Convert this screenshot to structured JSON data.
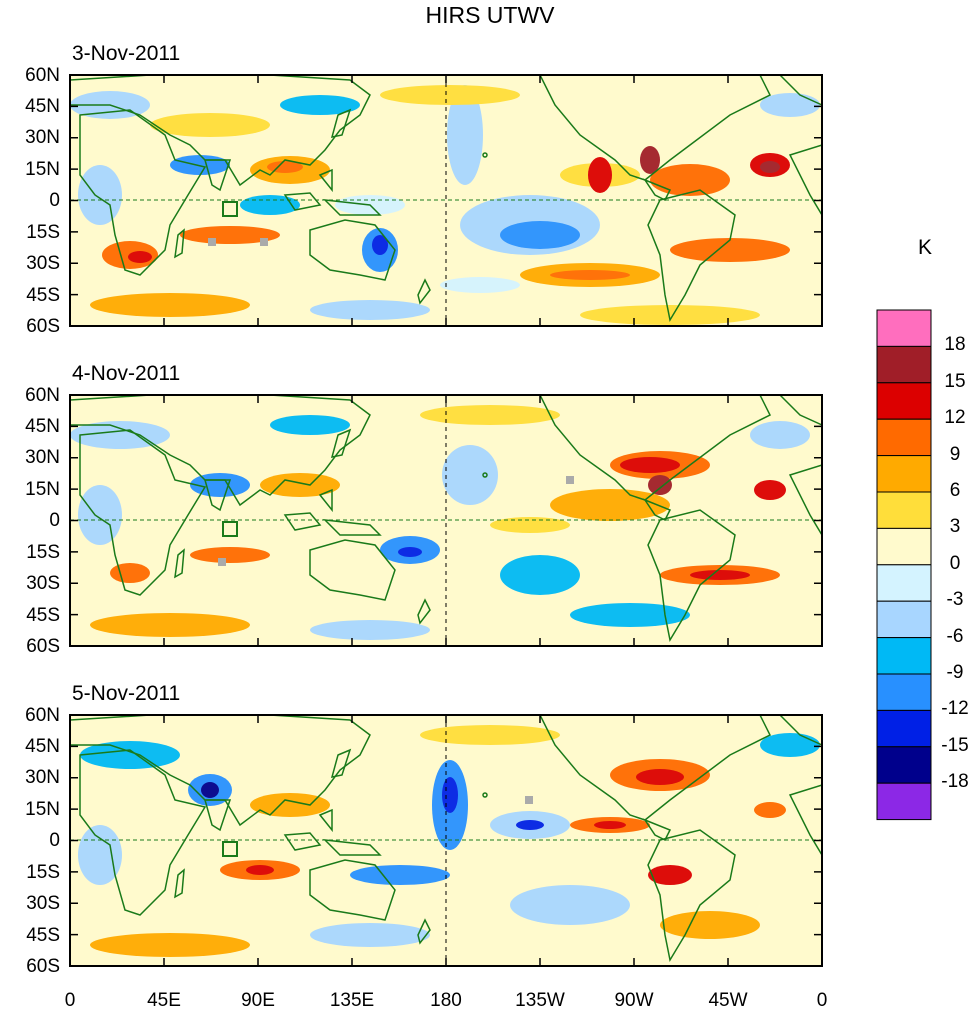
{
  "title": "HIRS UTWV",
  "panels": [
    {
      "date": "3-Nov-2011"
    },
    {
      "date": "4-Nov-2011"
    },
    {
      "date": "5-Nov-2011"
    }
  ],
  "lat_labels": [
    "60N",
    "45N",
    "30N",
    "15N",
    "0",
    "15S",
    "30S",
    "45S",
    "60S"
  ],
  "lon_labels": [
    "0",
    "45E",
    "90E",
    "135E",
    "180",
    "135W",
    "90W",
    "45W",
    "0"
  ],
  "colorbar": {
    "unit": "K",
    "labels": [
      "18",
      "15",
      "12",
      "9",
      "6",
      "3",
      "0",
      "-3",
      "-6",
      "-9",
      "-12",
      "-15",
      "-18"
    ],
    "colors": [
      "#ff6ebe",
      "#a01e28",
      "#dc0000",
      "#ff6a00",
      "#ffaa00",
      "#ffde3a",
      "#fffacd",
      "#d4f3ff",
      "#a8d6ff",
      "#00b9f5",
      "#2890ff",
      "#0020e6",
      "#00008c",
      "#8c28e6"
    ]
  }
}
